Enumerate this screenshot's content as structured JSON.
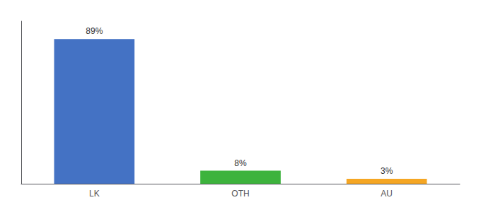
{
  "chart_data": {
    "type": "bar",
    "categories": [
      "LK",
      "OTH",
      "AU"
    ],
    "values": [
      89,
      8,
      3
    ],
    "value_labels": [
      "89%",
      "8%",
      "3%"
    ],
    "colors": [
      "#4472c4",
      "#3db33d",
      "#f5a623"
    ],
    "ylim": [
      0,
      100
    ],
    "data_labels": true,
    "tick_labels": "x",
    "grid": false
  }
}
